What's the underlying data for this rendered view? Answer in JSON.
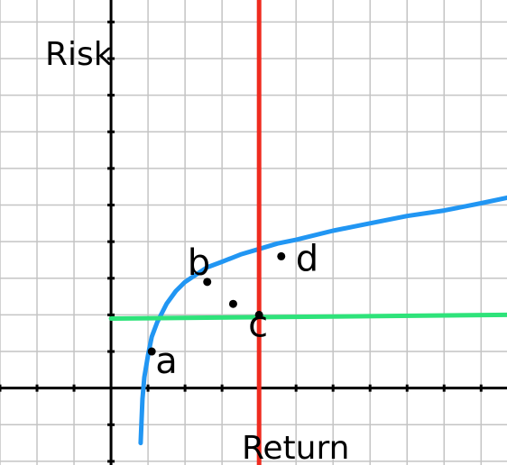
{
  "chart_data": {
    "type": "line",
    "xlabel": "Return",
    "ylabel": "Risk",
    "grid": true,
    "axis_ticks": true,
    "xlim": [
      -3,
      10.7
    ],
    "ylim": [
      -2.1,
      10.6
    ],
    "series": [
      {
        "name": "",
        "kind": "curve",
        "color": "#2196f3",
        "x": [
          0.8,
          0.85,
          0.9,
          1.0,
          1.1,
          1.25,
          1.5,
          1.75,
          2.0,
          2.3,
          2.6,
          3.0,
          3.5,
          4.0,
          4.5,
          5.0,
          6.0,
          7.0,
          8.0,
          9.0,
          10.0,
          10.7
        ],
        "y": [
          -1.5,
          -0.3,
          0.3,
          0.9,
          1.4,
          1.8,
          2.3,
          2.65,
          2.9,
          3.1,
          3.3,
          3.45,
          3.65,
          3.8,
          3.95,
          4.05,
          4.3,
          4.5,
          4.7,
          4.85,
          5.05,
          5.2
        ]
      },
      {
        "name": "",
        "kind": "horizontal-line",
        "color": "#2ee37a",
        "x": [
          0,
          10.7
        ],
        "y": [
          1.9,
          2.0
        ]
      },
      {
        "name": "",
        "kind": "vertical-line",
        "color": "#ef2b1f",
        "x": [
          4,
          4
        ],
        "y": [
          -2.1,
          10.6
        ]
      }
    ],
    "points": [
      {
        "label": "a",
        "x": 1.1,
        "y": 1.0
      },
      {
        "label": "b",
        "x": 2.6,
        "y": 2.9
      },
      {
        "label": "",
        "x": 3.3,
        "y": 2.3
      },
      {
        "label": "c",
        "x": 4.0,
        "y": 2.0
      },
      {
        "label": "d",
        "x": 4.6,
        "y": 3.6
      }
    ]
  }
}
